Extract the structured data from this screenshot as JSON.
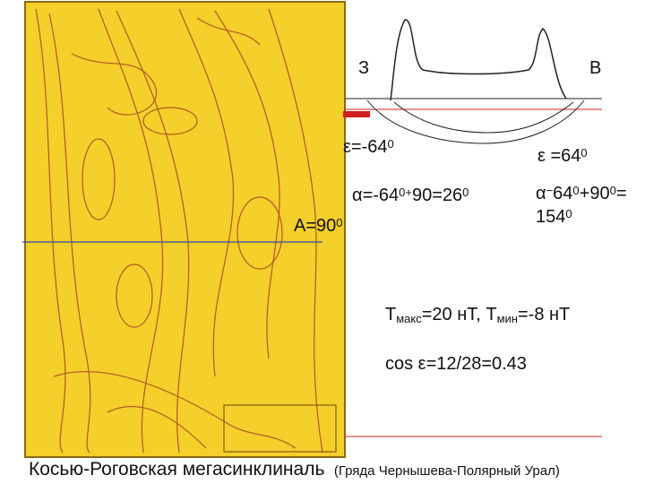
{
  "labels": {
    "west": [
      {
        "text": "З"
      }
    ],
    "east": [
      {
        "text": "В"
      }
    ],
    "eps_left": [
      {
        "text": "ε=-64"
      },
      {
        "sup": "0"
      }
    ],
    "eps_right": [
      {
        "text": "ε =64"
      },
      {
        "sup": "0"
      }
    ],
    "alpha_left": [
      {
        "text": "α=-64"
      },
      {
        "sup": "0+"
      },
      {
        "text": "90=26"
      },
      {
        "sup": "0"
      }
    ],
    "alpha_right": [
      {
        "text": "α"
      },
      {
        "sup": "−"
      },
      {
        "text": "64"
      },
      {
        "sup": "0"
      },
      {
        "text": "+90"
      },
      {
        "sup": "0"
      },
      {
        "text": "="
      }
    ],
    "alpha_right_2": [
      {
        "text": "154"
      },
      {
        "sup": "0"
      }
    ],
    "azimuth": [
      {
        "text": "A=90"
      },
      {
        "sup": "0"
      }
    ],
    "t_values": [
      {
        "text": "T"
      },
      {
        "sub": "макс"
      },
      {
        "text": "=20 нТ, T"
      },
      {
        "sub": "мин"
      },
      {
        "text": "=-8 нТ"
      }
    ],
    "cos": [
      {
        "text": "cos ε=12/28=0.43"
      }
    ]
  },
  "caption": {
    "main": "Косью-Роговская мегасинклиналь",
    "note": "(Гряда Чернышева-Полярный Урал)"
  }
}
